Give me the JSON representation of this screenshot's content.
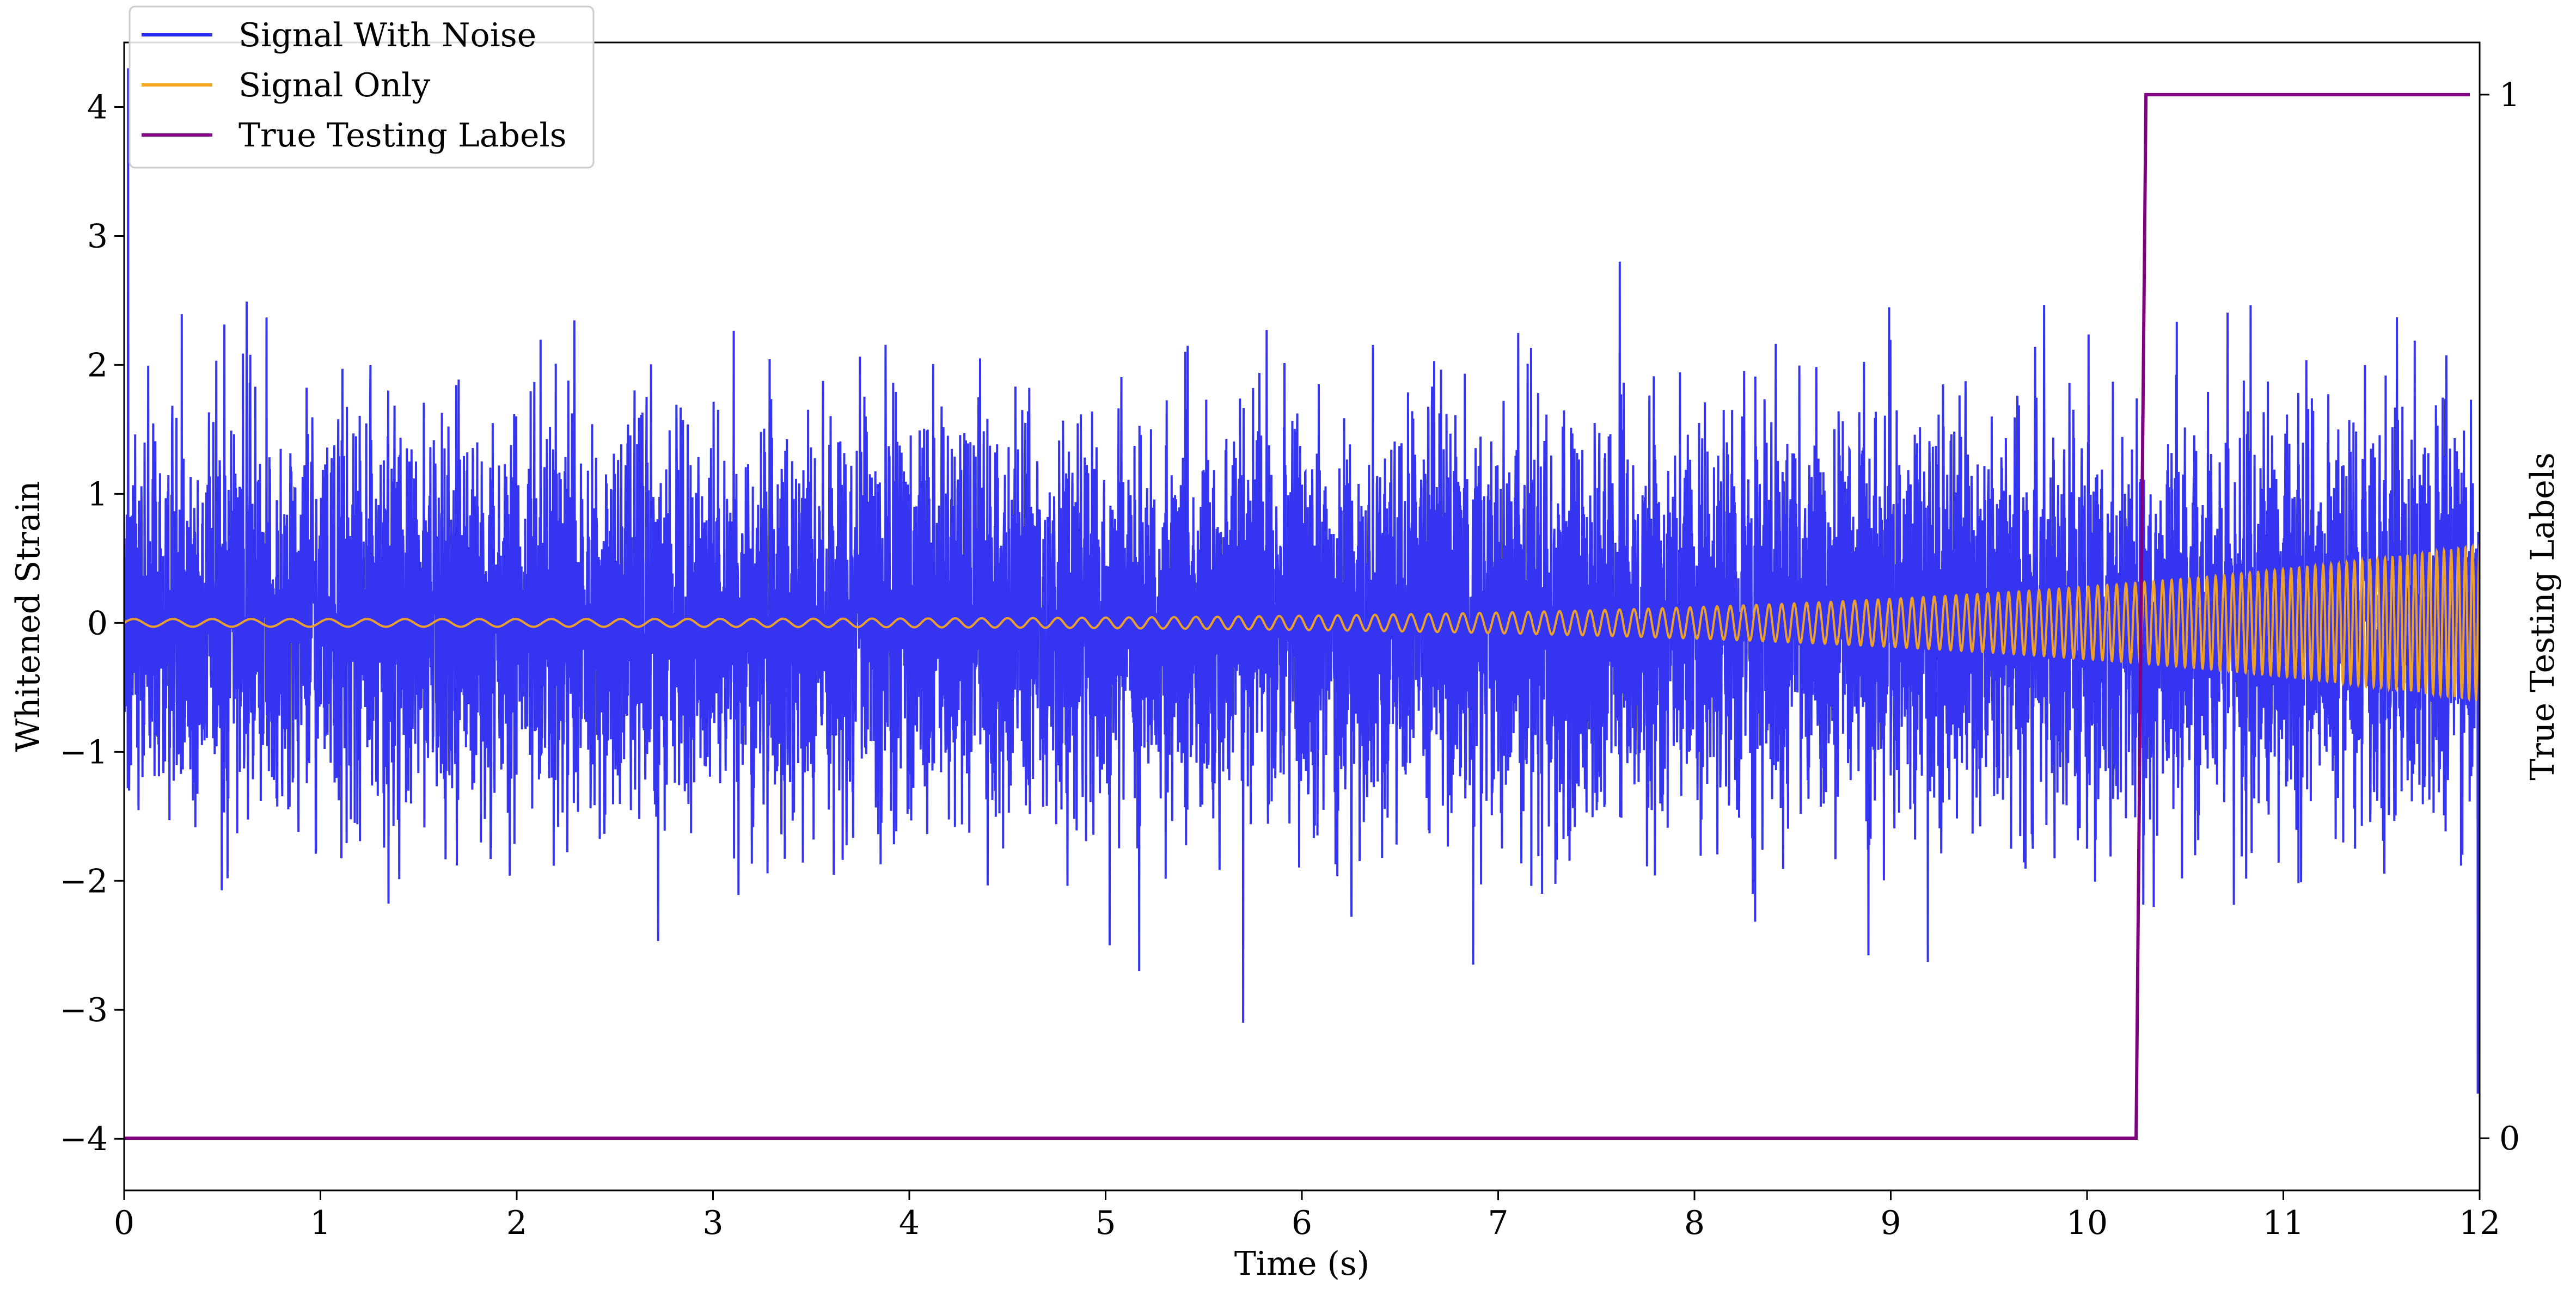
{
  "chart_data": {
    "type": "line",
    "title": "",
    "xlabel": "Time (s)",
    "ylabel": "Whitened Strain",
    "y2label": "True Testing Labels",
    "xlim": [
      0,
      12
    ],
    "ylim": [
      -4.4,
      4.5
    ],
    "y2lim": [
      -0.05,
      1.05
    ],
    "x_ticks": [
      0,
      1,
      2,
      3,
      4,
      5,
      6,
      7,
      8,
      9,
      10,
      11,
      12
    ],
    "x_tick_labels": [
      "0",
      "1",
      "2",
      "3",
      "4",
      "5",
      "6",
      "7",
      "8",
      "9",
      "10",
      "11",
      "12"
    ],
    "y_ticks": [
      -4,
      -3,
      -2,
      -1,
      0,
      1,
      2,
      3,
      4
    ],
    "y_tick_labels": [
      "−4",
      "−3",
      "−2",
      "−1",
      "0",
      "1",
      "2",
      "3",
      "4"
    ],
    "y2_ticks": [
      0,
      1
    ],
    "y2_tick_labels": [
      "0",
      "1"
    ],
    "grid": false,
    "legend_position": "top-left",
    "series": [
      {
        "name": "Signal With Noise",
        "axis": "left",
        "color": "#2a2af0",
        "description_of_values": "gaussian-like noise, amplitude mostly within ±2.5, peaks near −3.6 to 4.3",
        "x_range": [
          0,
          12
        ],
        "noise_std": 0.75,
        "notable_points": [
          {
            "x": 0.02,
            "y": 4.3
          },
          {
            "x": 5.7,
            "y": -3.1
          },
          {
            "x": 7.62,
            "y": 2.8
          },
          {
            "x": 11.99,
            "y": -3.65
          }
        ]
      },
      {
        "name": "Signal Only",
        "axis": "left",
        "color": "#f5a623",
        "description_of_values": "chirp; amplitude grows from ~0.03 to ~0.6 as frequency rises",
        "x_range": [
          0,
          12
        ],
        "amplitude_start": 0.03,
        "amplitude_end": 0.6,
        "cycles_per_s_start": 5,
        "cycles_per_s_end": 28
      },
      {
        "name": "True Testing Labels",
        "axis": "right",
        "color": "#800080",
        "x": [
          0,
          10.25,
          10.3,
          11.95
        ],
        "values": [
          0,
          0,
          1,
          1
        ]
      }
    ]
  }
}
